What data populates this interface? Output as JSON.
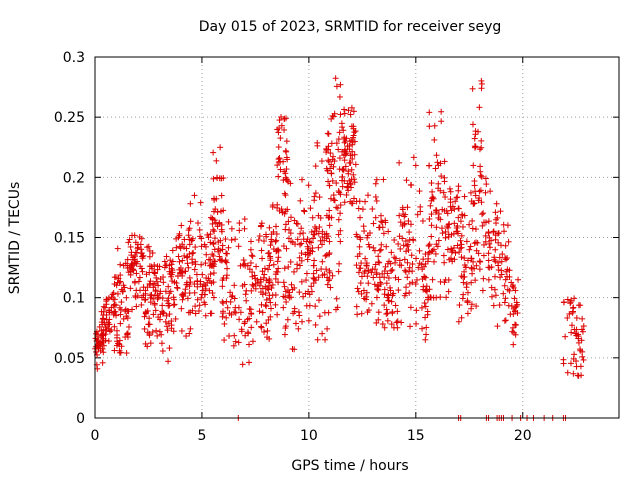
{
  "chart_data": {
    "type": "scatter",
    "title": "Day 015 of 2023, SRMTID for receiver seyg",
    "xlabel": "GPS time / hours",
    "ylabel": "SRMTID / TECUs",
    "xlim": [
      0,
      24.5
    ],
    "ylim": [
      0,
      0.3
    ],
    "x_ticks": [
      0,
      5,
      10,
      15,
      20
    ],
    "x_tick_labels": [
      "0",
      "5",
      "10",
      "15",
      "20"
    ],
    "y_ticks": [
      0,
      0.05,
      0.1,
      0.15,
      0.2,
      0.25,
      0.3
    ],
    "y_tick_labels": [
      "0",
      "0.05",
      "0.1",
      "0.15",
      "0.2",
      "0.25",
      "0.3"
    ],
    "grid": true,
    "marker": "plus",
    "series_color": "#dd0000",
    "series": [
      {
        "name": "SRMTID",
        "segments": [
          {
            "x_start": 0.0,
            "x_end": 0.5,
            "y_min": 0.04,
            "y_max": 0.085,
            "y_center": 0.065,
            "count": 40
          },
          {
            "x_start": 0.3,
            "x_end": 1.0,
            "y_min": 0.06,
            "y_max": 0.11,
            "y_center": 0.085,
            "count": 45
          },
          {
            "x_start": 0.9,
            "x_end": 1.6,
            "y_min": 0.05,
            "y_max": 0.155,
            "y_center": 0.09,
            "count": 60
          },
          {
            "x_start": 1.6,
            "x_end": 2.3,
            "y_min": 0.09,
            "y_max": 0.155,
            "y_center": 0.13,
            "count": 60
          },
          {
            "x_start": 2.3,
            "x_end": 3.0,
            "y_min": 0.05,
            "y_max": 0.15,
            "y_center": 0.105,
            "count": 65
          },
          {
            "x_start": 3.0,
            "x_end": 3.6,
            "y_min": 0.045,
            "y_max": 0.14,
            "y_center": 0.095,
            "count": 50
          },
          {
            "x_start": 3.6,
            "x_end": 4.3,
            "y_min": 0.06,
            "y_max": 0.16,
            "y_center": 0.12,
            "count": 55
          },
          {
            "x_start": 4.3,
            "x_end": 5.0,
            "y_min": 0.065,
            "y_max": 0.185,
            "y_center": 0.13,
            "count": 55
          },
          {
            "x_start": 5.0,
            "x_end": 5.6,
            "y_min": 0.085,
            "y_max": 0.17,
            "y_center": 0.12,
            "count": 50
          },
          {
            "x_start": 5.5,
            "x_end": 6.0,
            "y_min": 0.13,
            "y_max": 0.225,
            "y_center": 0.16,
            "count": 40
          },
          {
            "x_start": 5.9,
            "x_end": 6.6,
            "y_min": 0.06,
            "y_max": 0.19,
            "y_center": 0.11,
            "count": 45
          },
          {
            "x_start": 6.7,
            "x_end": 7.4,
            "y_min": 0.04,
            "y_max": 0.17,
            "y_center": 0.1,
            "count": 45
          },
          {
            "x_start": 7.3,
            "x_end": 8.2,
            "y_min": 0.06,
            "y_max": 0.17,
            "y_center": 0.11,
            "count": 55
          },
          {
            "x_start": 8.0,
            "x_end": 8.6,
            "y_min": 0.08,
            "y_max": 0.19,
            "y_center": 0.13,
            "count": 45
          },
          {
            "x_start": 8.5,
            "x_end": 9.0,
            "y_min": 0.17,
            "y_max": 0.255,
            "y_center": 0.22,
            "count": 40
          },
          {
            "x_start": 8.8,
            "x_end": 9.6,
            "y_min": 0.05,
            "y_max": 0.2,
            "y_center": 0.13,
            "count": 60
          },
          {
            "x_start": 9.6,
            "x_end": 10.3,
            "y_min": 0.08,
            "y_max": 0.2,
            "y_center": 0.135,
            "count": 55
          },
          {
            "x_start": 10.3,
            "x_end": 11.0,
            "y_min": 0.065,
            "y_max": 0.24,
            "y_center": 0.13,
            "count": 50
          },
          {
            "x_start": 10.8,
            "x_end": 11.5,
            "y_min": 0.085,
            "y_max": 0.285,
            "y_center": 0.2,
            "count": 70
          },
          {
            "x_start": 11.5,
            "x_end": 12.2,
            "y_min": 0.17,
            "y_max": 0.265,
            "y_center": 0.225,
            "count": 75
          },
          {
            "x_start": 12.2,
            "x_end": 13.0,
            "y_min": 0.085,
            "y_max": 0.19,
            "y_center": 0.14,
            "count": 55
          },
          {
            "x_start": 13.0,
            "x_end": 13.6,
            "y_min": 0.075,
            "y_max": 0.2,
            "y_center": 0.13,
            "count": 45
          },
          {
            "x_start": 13.5,
            "x_end": 14.2,
            "y_min": 0.075,
            "y_max": 0.165,
            "y_center": 0.105,
            "count": 50
          },
          {
            "x_start": 14.2,
            "x_end": 15.0,
            "y_min": 0.07,
            "y_max": 0.22,
            "y_center": 0.13,
            "count": 55
          },
          {
            "x_start": 15.0,
            "x_end": 15.6,
            "y_min": 0.065,
            "y_max": 0.19,
            "y_center": 0.11,
            "count": 45
          },
          {
            "x_start": 15.6,
            "x_end": 16.2,
            "y_min": 0.1,
            "y_max": 0.255,
            "y_center": 0.16,
            "count": 55
          },
          {
            "x_start": 16.2,
            "x_end": 17.0,
            "y_min": 0.1,
            "y_max": 0.215,
            "y_center": 0.16,
            "count": 60
          },
          {
            "x_start": 17.0,
            "x_end": 17.6,
            "y_min": 0.08,
            "y_max": 0.19,
            "y_center": 0.13,
            "count": 45
          },
          {
            "x_start": 17.6,
            "x_end": 18.1,
            "y_min": 0.09,
            "y_max": 0.285,
            "y_center": 0.19,
            "count": 55
          },
          {
            "x_start": 18.1,
            "x_end": 18.8,
            "y_min": 0.09,
            "y_max": 0.2,
            "y_center": 0.145,
            "count": 45
          },
          {
            "x_start": 18.8,
            "x_end": 19.4,
            "y_min": 0.075,
            "y_max": 0.175,
            "y_center": 0.125,
            "count": 40
          },
          {
            "x_start": 19.4,
            "x_end": 19.8,
            "y_min": 0.06,
            "y_max": 0.12,
            "y_center": 0.09,
            "count": 25
          },
          {
            "x_start": 21.9,
            "x_end": 22.9,
            "y_min": 0.035,
            "y_max": 0.115,
            "y_center": 0.07,
            "count": 50
          }
        ],
        "zero_points_x": [
          6.7,
          17.0,
          17.1,
          18.3,
          18.4,
          18.8,
          18.9,
          19.0,
          19.1,
          19.5,
          19.9,
          20.2,
          20.5,
          21.0,
          21.4,
          21.9,
          22.0
        ]
      }
    ]
  }
}
